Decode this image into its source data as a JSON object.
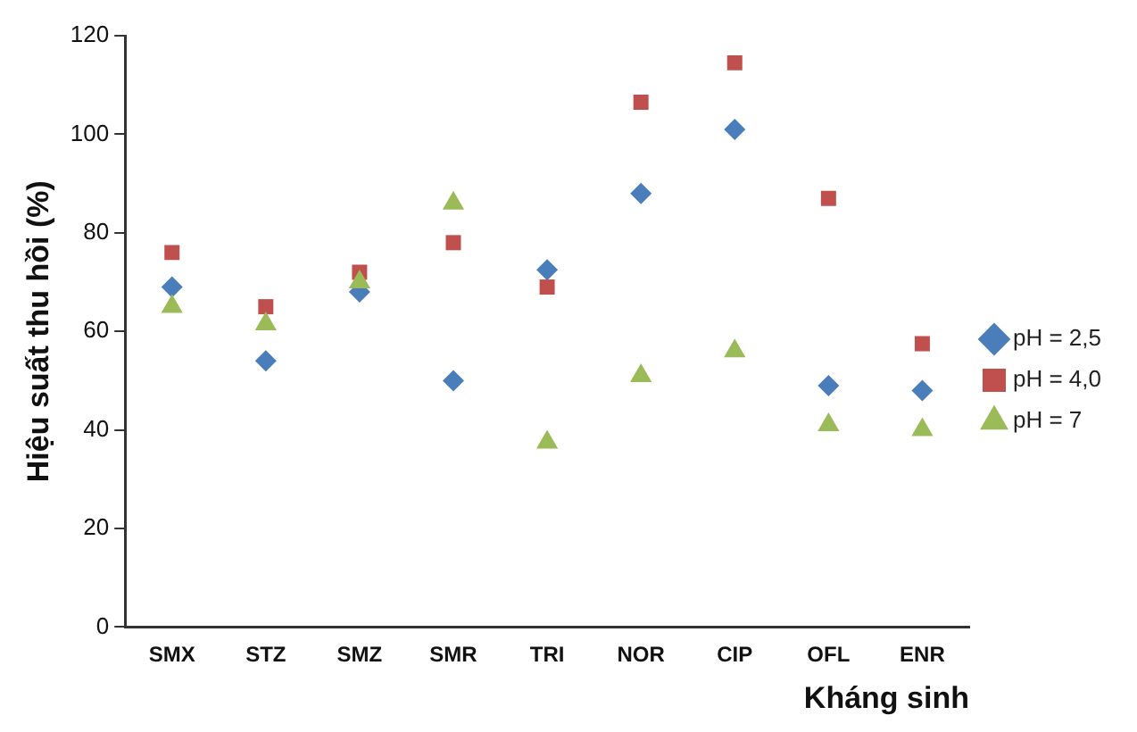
{
  "chart_data": {
    "type": "scatter",
    "xlabel": "Kháng sinh",
    "ylabel": "Hiệu suất thu hồi (%)",
    "categories": [
      "SMX",
      "STZ",
      "SMZ",
      "SMR",
      "TRI",
      "NOR",
      "CIP",
      "OFL",
      "ENR"
    ],
    "series": [
      {
        "name": "pH = 2,5",
        "color": "#4a7ebb",
        "marker": "diamond",
        "values": [
          69,
          54,
          68,
          50,
          72.5,
          88,
          101,
          49,
          48
        ]
      },
      {
        "name": "pH = 4,0",
        "color": "#c0504d",
        "marker": "square",
        "values": [
          76,
          65,
          72,
          78,
          69,
          106.5,
          114.5,
          87,
          57.5
        ]
      },
      {
        "name": "pH = 7",
        "color": "#9bbb59",
        "marker": "triangle",
        "values": [
          65,
          61.5,
          70,
          86,
          37.5,
          51,
          56,
          41,
          40
        ]
      }
    ],
    "ylim": [
      0,
      120
    ],
    "yticks": [
      0,
      20,
      40,
      60,
      80,
      100,
      120
    ],
    "grid": false,
    "legend": "right"
  }
}
